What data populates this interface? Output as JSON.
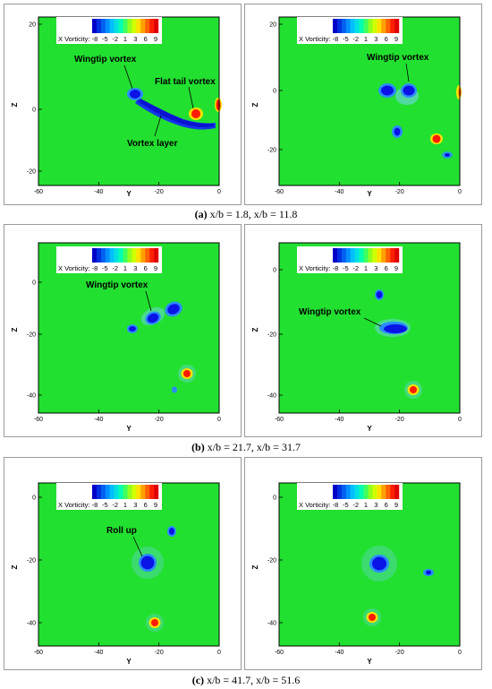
{
  "legend": {
    "label": "X Vorticity:",
    "ticks": [
      "-8",
      "-5",
      "-2",
      "1",
      "3",
      "6",
      "9"
    ],
    "colors": [
      "#0000c8",
      "#0030e0",
      "#0060f0",
      "#0090ff",
      "#00bfff",
      "#00e0e0",
      "#00ffb0",
      "#40ff60",
      "#90ff20",
      "#d0ff00",
      "#ffe000",
      "#ffa000",
      "#ff6000",
      "#ff2000",
      "#e00000"
    ]
  },
  "colors": {
    "field": "#22e030",
    "neg_core": "#0a14e6",
    "neg_halo": "#2a8cff",
    "pos_core": "#ff1a00",
    "pos_halo": "#ffe000"
  },
  "captions": [
    {
      "tag": "(a)",
      "text": " x/b = 1.8, x/b = 11.8"
    },
    {
      "tag": "(b)",
      "text": " x/b = 21.7, x/b = 31.7"
    },
    {
      "tag": "(c)",
      "text": " x/b = 41.7, x/b = 51.6"
    }
  ],
  "plots": [
    {
      "id": "a-left",
      "x_ticks": [
        "-60",
        "-40",
        "-20",
        "0"
      ],
      "y_ticks": [
        "20",
        "0",
        "-20"
      ],
      "xlabel": "Y",
      "ylabel": "Z",
      "ann": [
        "Wingtip vortex",
        "Flat tail vortex",
        "Vortex layer"
      ]
    },
    {
      "id": "a-right",
      "x_ticks": [
        "-60",
        "-40",
        "-20",
        "0"
      ],
      "y_ticks": [
        "20",
        "0",
        "-20"
      ],
      "xlabel": "Y",
      "ylabel": "Z",
      "ann": [
        "Wingtip vortex"
      ]
    },
    {
      "id": "b-left",
      "x_ticks": [
        "-60",
        "-40",
        "-20",
        "0"
      ],
      "y_ticks": [
        "0",
        "-20",
        "-40"
      ],
      "xlabel": "Y",
      "ylabel": "Z",
      "ann": [
        "Wingtip vortex"
      ]
    },
    {
      "id": "b-right",
      "x_ticks": [
        "-60",
        "-40",
        "-20",
        "0"
      ],
      "y_ticks": [
        "0",
        "-20",
        "-40"
      ],
      "xlabel": "Y",
      "ylabel": "Z",
      "ann": [
        "Wingtip vortex"
      ]
    },
    {
      "id": "c-left",
      "x_ticks": [
        "-60",
        "-40",
        "-20",
        "0"
      ],
      "y_ticks": [
        "0",
        "-20",
        "-40"
      ],
      "xlabel": "Y",
      "ylabel": "Z",
      "ann": [
        "Roll up"
      ]
    },
    {
      "id": "c-right",
      "x_ticks": [
        "-60",
        "-40",
        "-20",
        "0"
      ],
      "y_ticks": [
        "0",
        "-20",
        "-40"
      ],
      "xlabel": "Y",
      "ylabel": "Z",
      "ann": []
    }
  ]
}
